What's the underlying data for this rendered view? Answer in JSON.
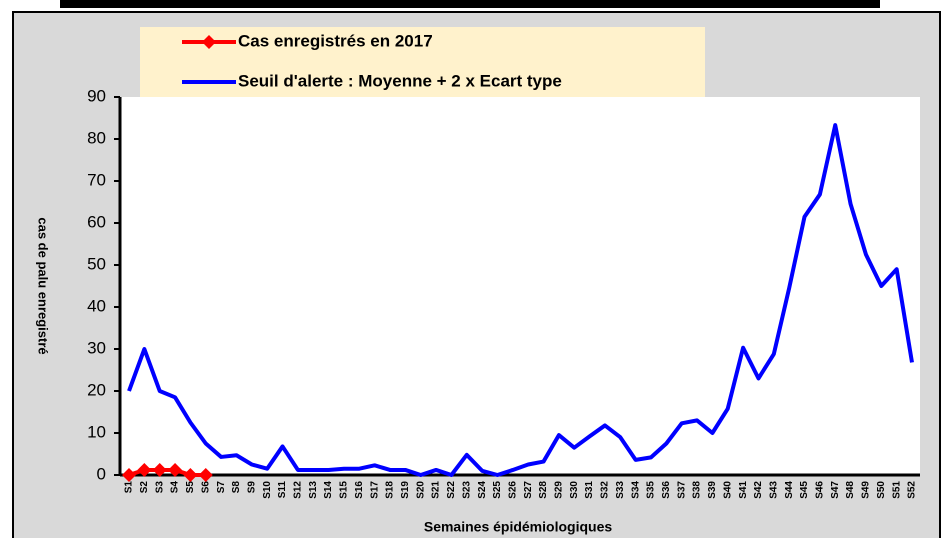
{
  "chart_data": {
    "type": "line",
    "xlabel": "Semaines épidémiologiques",
    "ylabel": "cas de palu enregistré",
    "categories": [
      "S1",
      "S2",
      "S3",
      "S4",
      "S5",
      "S6",
      "S7",
      "S8",
      "S9",
      "S10",
      "S11",
      "S12",
      "S13",
      "S14",
      "S15",
      "S16",
      "S17",
      "S18",
      "S19",
      "S20",
      "S21",
      "S22",
      "S23",
      "S24",
      "S25",
      "S26",
      "S27",
      "S28",
      "S29",
      "S30",
      "S31",
      "S32",
      "S33",
      "S34",
      "S35",
      "S36",
      "S37",
      "S38",
      "S39",
      "S40",
      "S41",
      "S42",
      "S43",
      "S44",
      "S45",
      "S46",
      "S47",
      "S48",
      "S49",
      "S50",
      "S51",
      "S52"
    ],
    "series": [
      {
        "name": "Cas enregistrés en 2017",
        "color": "#ff0000",
        "marker": "diamond",
        "values": [
          0,
          1.2,
          1.2,
          1.2,
          0,
          0,
          null,
          null,
          null,
          null,
          null,
          null,
          null,
          null,
          null,
          null,
          null,
          null,
          null,
          null,
          null,
          null,
          null,
          null,
          null,
          null,
          null,
          null,
          null,
          null,
          null,
          null,
          null,
          null,
          null,
          null,
          null,
          null,
          null,
          null,
          null,
          null,
          null,
          null,
          null,
          null,
          null,
          null,
          null,
          null,
          null,
          null
        ]
      },
      {
        "name": "Seuil d'alerte : Moyenne + 2 x Ecart type",
        "color": "#0000ff",
        "values": [
          20,
          30,
          20,
          18.5,
          12.5,
          7.5,
          4.3,
          4.7,
          2.5,
          1.5,
          6.8,
          1.2,
          1.2,
          1.2,
          1.5,
          1.5,
          2.3,
          1.2,
          1.2,
          0,
          1.2,
          0,
          4.8,
          1,
          0,
          1.2,
          2.5,
          3.2,
          9.5,
          6.5,
          9.2,
          11.8,
          9,
          3.6,
          4.2,
          7.5,
          12.3,
          13,
          10,
          15.8,
          30.3,
          23,
          28.8,
          44.5,
          61.5,
          66.8,
          83.3,
          64.5,
          52.5,
          45,
          49,
          26.8
        ]
      }
    ],
    "ylim": [
      0,
      90
    ],
    "yticks": [
      0,
      10,
      20,
      30,
      40,
      50,
      60,
      70,
      80,
      90
    ],
    "grid": false
  }
}
